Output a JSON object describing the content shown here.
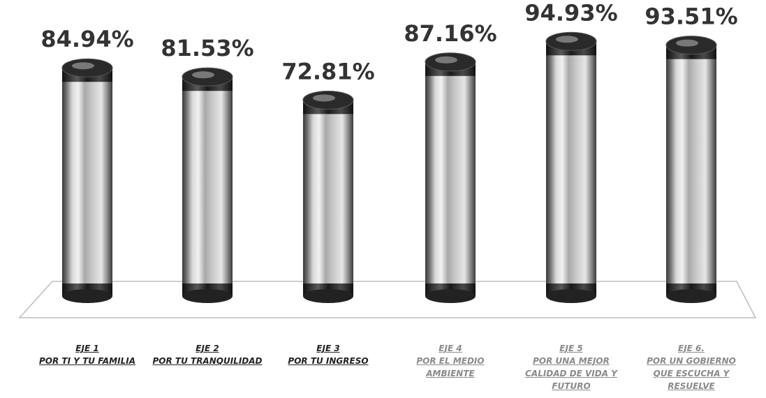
{
  "chart_data": {
    "type": "bar",
    "title": "",
    "xlabel": "",
    "ylabel": "",
    "grid": false,
    "legend": "none",
    "ylim": [
      0,
      100
    ],
    "categories": [
      {
        "lines": [
          "EJE 1",
          "POR TI Y TU FAMILIA"
        ],
        "color": "#222222"
      },
      {
        "lines": [
          "EJE 2",
          "POR TU TRANQUILIDAD"
        ],
        "color": "#222222"
      },
      {
        "lines": [
          "EJE 3",
          "POR TU INGRESO"
        ],
        "color": "#222222"
      },
      {
        "lines": [
          "EJE 4",
          "POR EL MEDIO",
          "AMBIENTE"
        ],
        "color": "#8a8a8a"
      },
      {
        "lines": [
          "EJE 5",
          "POR UNA MEJOR",
          "CALIDAD DE VIDA Y",
          "FUTURO"
        ],
        "color": "#8a8a8a"
      },
      {
        "lines": [
          "EJE 6.",
          "POR UN GOBIERNO",
          "QUE ESCUCHA Y",
          "RESUELVE"
        ],
        "color": "#8a8a8a"
      }
    ],
    "values": [
      84.94,
      81.53,
      72.81,
      87.16,
      94.93,
      93.51
    ],
    "value_labels": [
      "84.94%",
      "81.53%",
      "72.81%",
      "87.16%",
      "94.93%",
      "93.51%"
    ],
    "bar_style": "metallic-cylinder",
    "colors": {
      "bar_light": "#e8e8e8",
      "bar_mid": "#9a9a9a",
      "bar_dark": "#2a2a2a",
      "floor": "#bdbdbd"
    }
  }
}
